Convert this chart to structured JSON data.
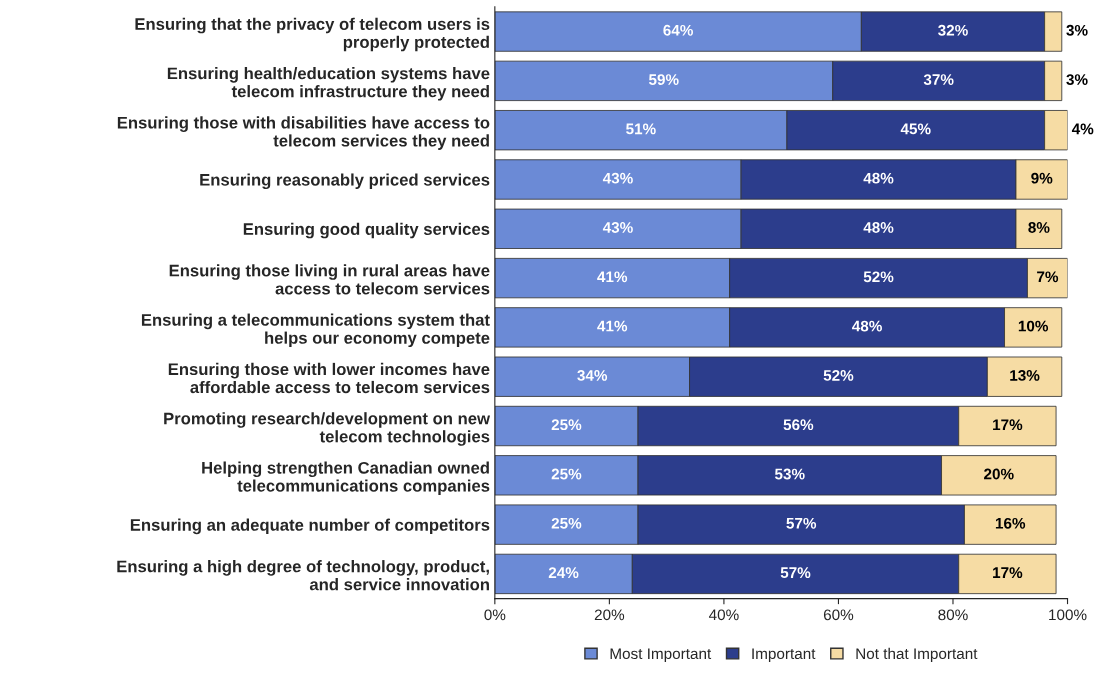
{
  "chart_data": {
    "type": "bar",
    "orientation": "horizontal",
    "stacked": true,
    "categories": [
      "Ensuring that the privacy of telecom users is\nproperly protected",
      "Ensuring health/education systems have\ntelecom infrastructure they need",
      "Ensuring those with disabilities have access to\ntelecom services they need",
      "Ensuring reasonably priced services",
      "Ensuring good quality services",
      "Ensuring those living in rural areas have\naccess to telecom services",
      "Ensuring a telecommunications system that\nhelps our economy compete",
      "Ensuring those with lower incomes have\naffordable access to telecom services",
      "Promoting research/development on new\ntelecom technologies",
      "Helping strengthen Canadian owned\ntelecommunications companies",
      "Ensuring an adequate number of competitors",
      "Ensuring a high degree of technology, product,\nand service innovation"
    ],
    "series": [
      {
        "name": "Most Important",
        "color": "#6b8ad6",
        "values": [
          64,
          59,
          51,
          43,
          43,
          41,
          41,
          34,
          25,
          25,
          25,
          24
        ],
        "value_labels": [
          "64%",
          "59%",
          "51%",
          "43%",
          "43%",
          "41%",
          "41%",
          "34%",
          "25%",
          "25%",
          "25%",
          "24%"
        ]
      },
      {
        "name": "Important",
        "color": "#2c3d8c",
        "values": [
          32,
          37,
          45,
          48,
          48,
          52,
          48,
          52,
          56,
          53,
          57,
          57
        ],
        "value_labels": [
          "32%",
          "37%",
          "45%",
          "48%",
          "48%",
          "52%",
          "48%",
          "52%",
          "56%",
          "53%",
          "57%",
          "57%"
        ]
      },
      {
        "name": "Not that Important",
        "color": "#f6dca4",
        "values": [
          3,
          3,
          4,
          9,
          8,
          7,
          10,
          13,
          17,
          20,
          16,
          17
        ],
        "value_labels": [
          "3%",
          "3%",
          "4%",
          "9%",
          "8%",
          "7%",
          "10%",
          "13%",
          "17%",
          "20%",
          "16%",
          "17%"
        ]
      }
    ],
    "xlim": [
      0,
      100
    ],
    "xticks": [
      {
        "value": 0,
        "label": "0%"
      },
      {
        "value": 20,
        "label": "20%"
      },
      {
        "value": 40,
        "label": "40%"
      },
      {
        "value": 60,
        "label": "60%"
      },
      {
        "value": 80,
        "label": "80%"
      },
      {
        "value": 100,
        "label": "100%"
      }
    ],
    "legend": "bottom"
  }
}
